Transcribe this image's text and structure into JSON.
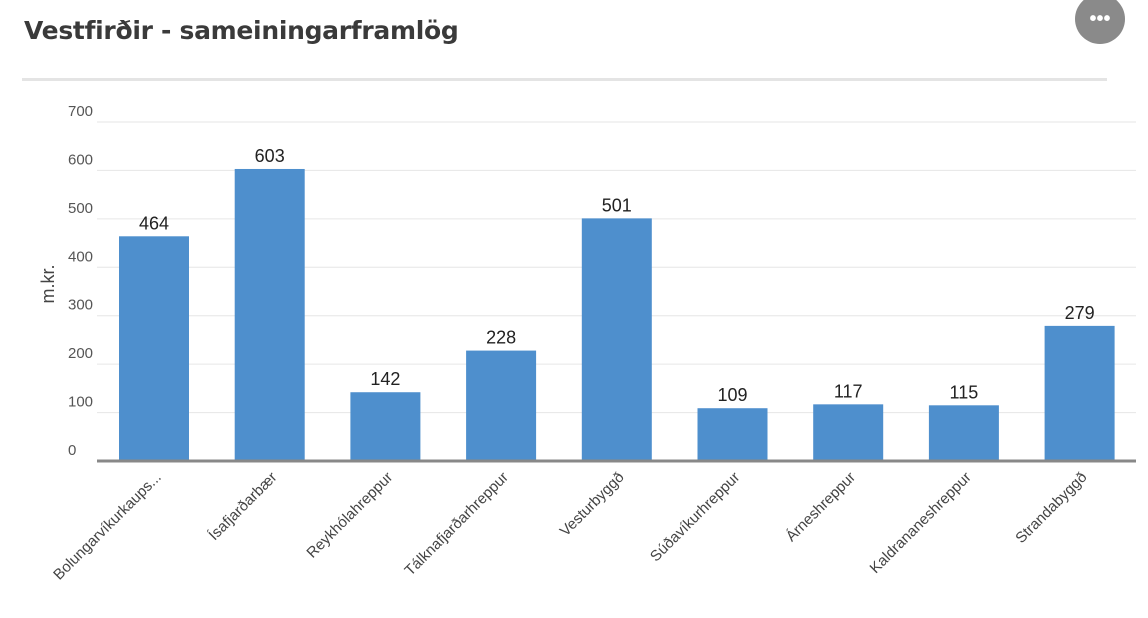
{
  "header": {
    "title": "Vestfirðir - sameiningarframlög",
    "more_button_label": "•••"
  },
  "colors": {
    "bar": "#4e8fcd",
    "grid": "#e6e6e6",
    "axis": "#888888",
    "title": "#3a3a3a"
  },
  "chart_data": {
    "type": "bar",
    "title": "Vestfirðir - sameiningarframlög",
    "xlabel": "",
    "ylabel": "m.kr.",
    "ylim": [
      0,
      700
    ],
    "yticks": [
      0,
      100,
      200,
      300,
      400,
      500,
      600,
      700
    ],
    "grid": true,
    "legend": "none",
    "categories": [
      "Bolungarvíkurkaups...",
      "Ísafjarðarbær",
      "Reykhólahreppur",
      "Tálknafjarðarhreppur",
      "Vesturbyggð",
      "Súðavíkurhreppur",
      "Árneshreppur",
      "Kaldrananeshreppur",
      "Strandabyggð"
    ],
    "values": [
      464,
      603,
      142,
      228,
      501,
      109,
      117,
      115,
      279
    ]
  }
}
